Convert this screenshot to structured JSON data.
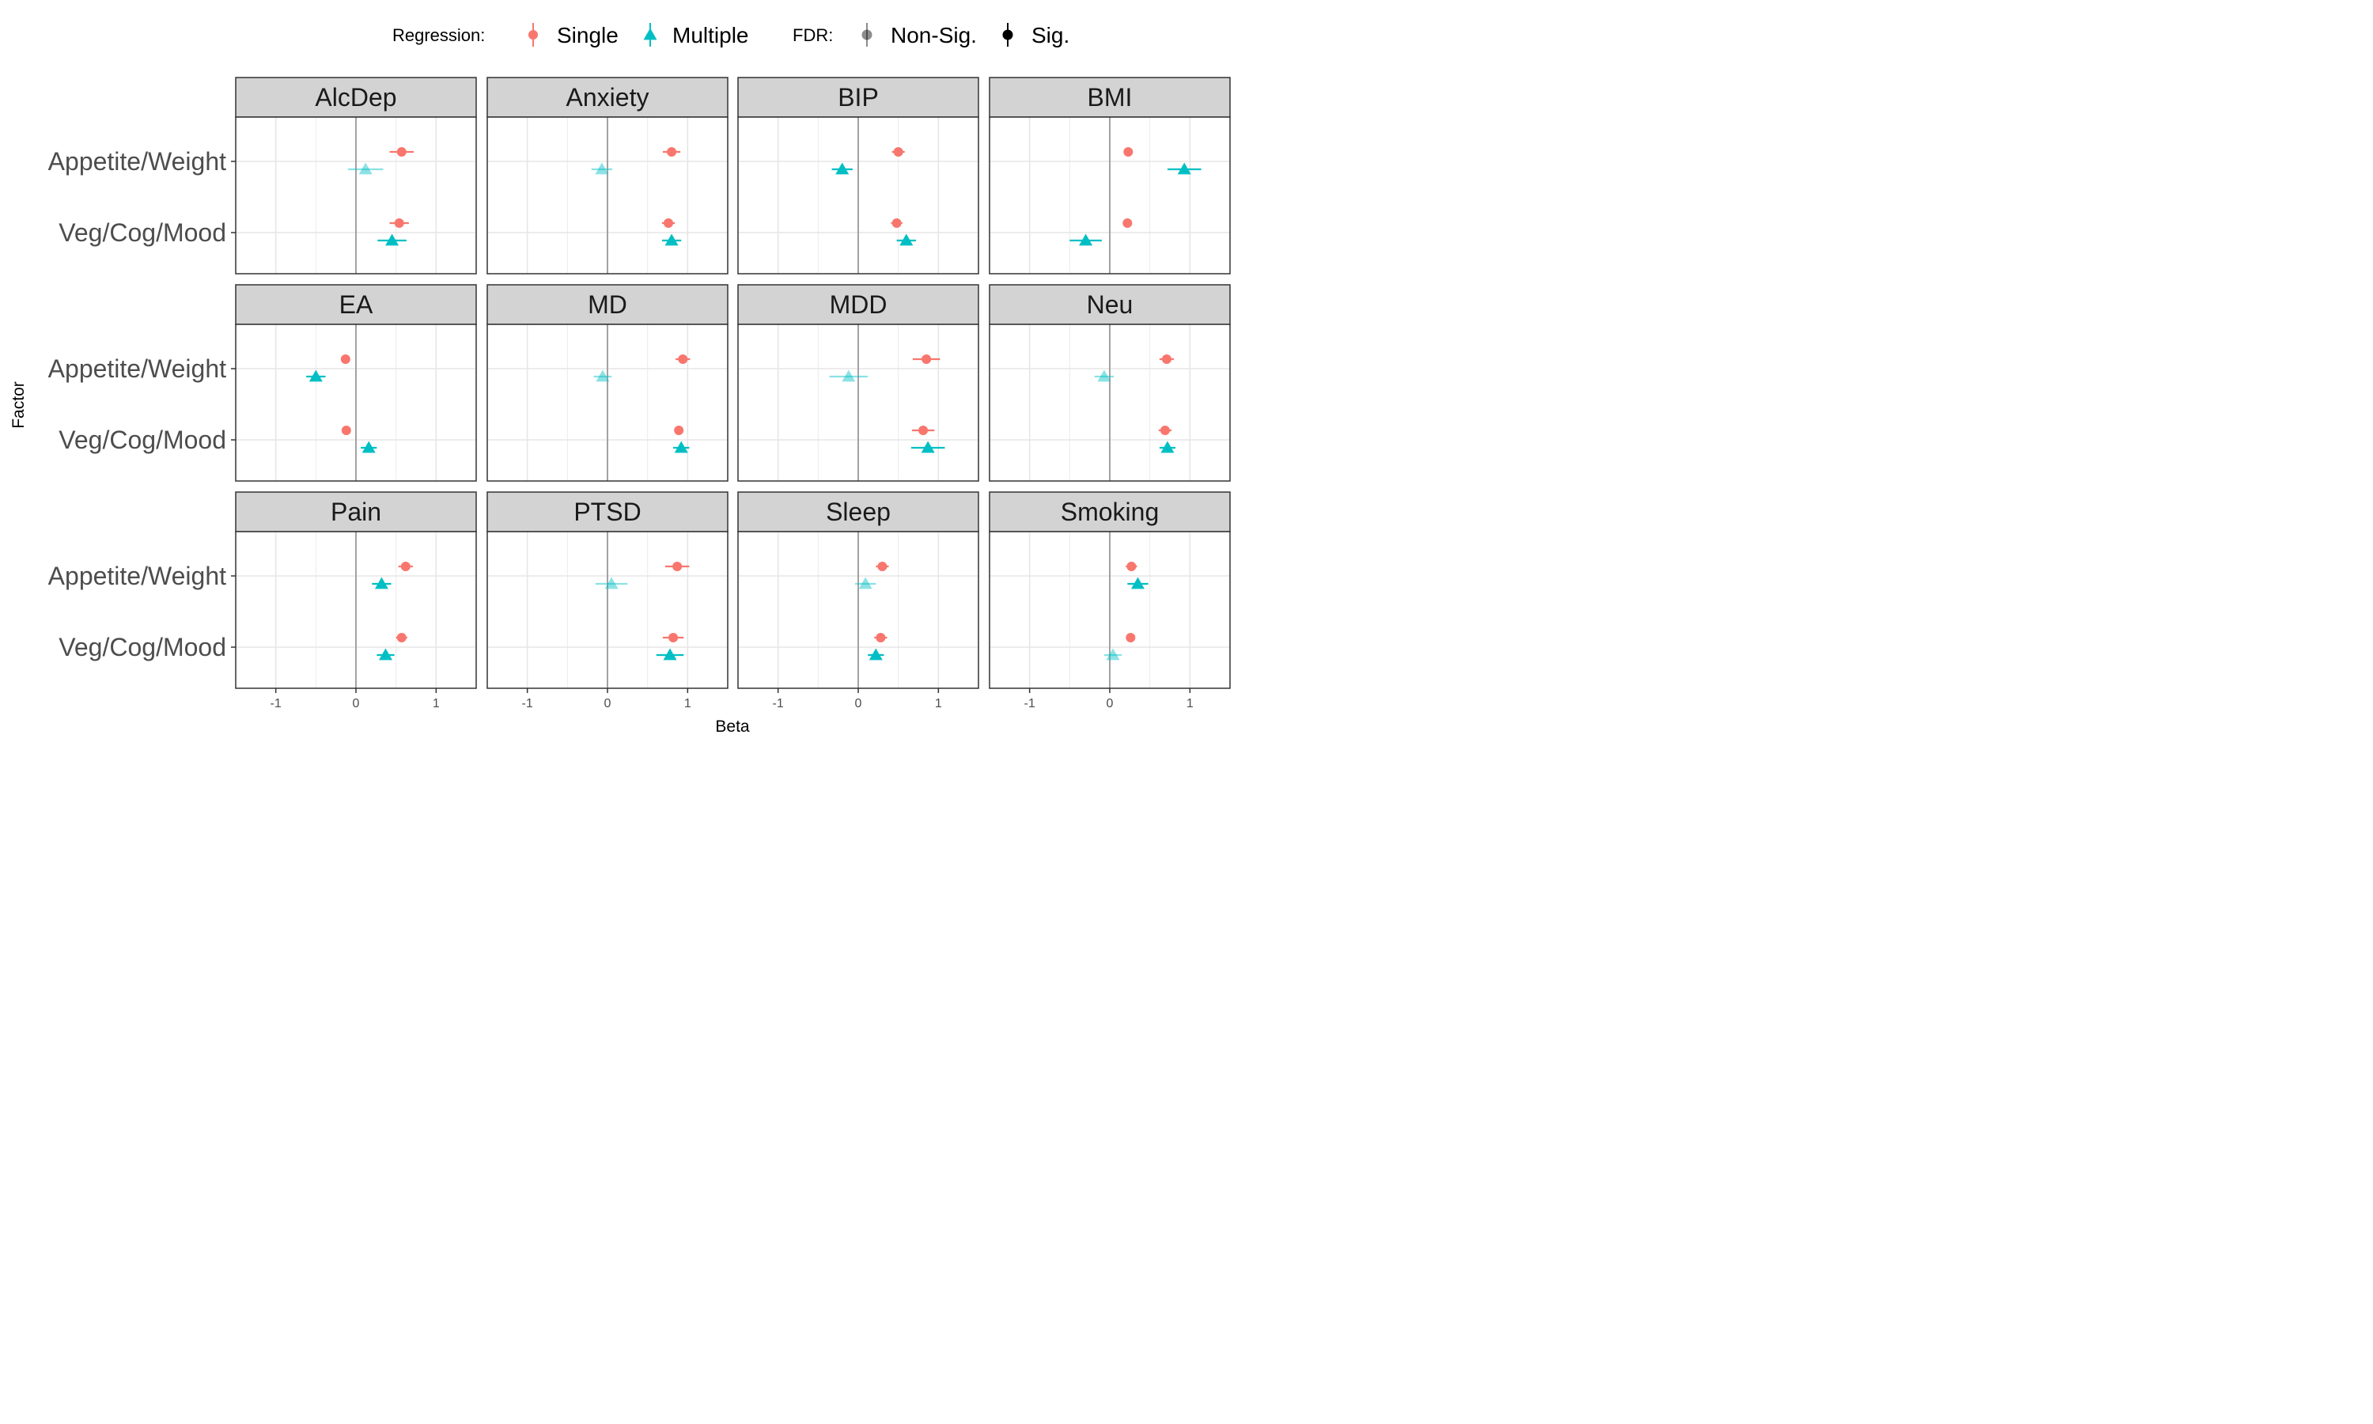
{
  "chart_data": {
    "type": "dot-whisker",
    "xlabel": "Beta",
    "ylabel": "Factor",
    "xlim": [
      -1.5,
      1.5
    ],
    "x_ticks": [
      "-1",
      "0",
      "1"
    ],
    "x_tick_values": [
      -1,
      0,
      1
    ],
    "y_categories": [
      "Appetite/Weight",
      "Veg/Cog/Mood"
    ],
    "grid": true,
    "legend": {
      "placement": "top",
      "regression_title": "Regression:",
      "regression_items": [
        {
          "label": "Single",
          "color": "#F8766D",
          "shape": "circle"
        },
        {
          "label": "Multiple",
          "color": "#00BFC4",
          "shape": "triangle"
        }
      ],
      "fdr_title": "FDR:",
      "fdr_items": [
        {
          "label": "Non-Sig.",
          "alpha": 0.45
        },
        {
          "label": "Sig.",
          "alpha": 1
        }
      ]
    },
    "series": [
      {
        "name": "Single",
        "color": "#F8766D",
        "shape": "circle"
      },
      {
        "name": "Multiple",
        "color": "#00BFC4",
        "shape": "triangle"
      }
    ],
    "panels": [
      {
        "title": "AlcDep",
        "points": [
          {
            "factor": "Appetite/Weight",
            "series": "Single",
            "beta": 0.57,
            "lo": 0.42,
            "hi": 0.72,
            "sig": true
          },
          {
            "factor": "Appetite/Weight",
            "series": "Multiple",
            "beta": 0.12,
            "lo": -0.1,
            "hi": 0.34,
            "sig": false
          },
          {
            "factor": "Veg/Cog/Mood",
            "series": "Single",
            "beta": 0.54,
            "lo": 0.42,
            "hi": 0.66,
            "sig": true
          },
          {
            "factor": "Veg/Cog/Mood",
            "series": "Multiple",
            "beta": 0.45,
            "lo": 0.27,
            "hi": 0.63,
            "sig": true
          }
        ]
      },
      {
        "title": "Anxiety",
        "points": [
          {
            "factor": "Appetite/Weight",
            "series": "Single",
            "beta": 0.8,
            "lo": 0.69,
            "hi": 0.91,
            "sig": true
          },
          {
            "factor": "Appetite/Weight",
            "series": "Multiple",
            "beta": -0.07,
            "lo": -0.2,
            "hi": 0.06,
            "sig": false
          },
          {
            "factor": "Veg/Cog/Mood",
            "series": "Single",
            "beta": 0.76,
            "lo": 0.68,
            "hi": 0.84,
            "sig": true
          },
          {
            "factor": "Veg/Cog/Mood",
            "series": "Multiple",
            "beta": 0.8,
            "lo": 0.68,
            "hi": 0.92,
            "sig": true
          }
        ]
      },
      {
        "title": "BIP",
        "points": [
          {
            "factor": "Appetite/Weight",
            "series": "Single",
            "beta": 0.5,
            "lo": 0.42,
            "hi": 0.58,
            "sig": true
          },
          {
            "factor": "Appetite/Weight",
            "series": "Multiple",
            "beta": -0.2,
            "lo": -0.33,
            "hi": -0.07,
            "sig": true
          },
          {
            "factor": "Veg/Cog/Mood",
            "series": "Single",
            "beta": 0.48,
            "lo": 0.41,
            "hi": 0.55,
            "sig": true
          },
          {
            "factor": "Veg/Cog/Mood",
            "series": "Multiple",
            "beta": 0.6,
            "lo": 0.48,
            "hi": 0.72,
            "sig": true
          }
        ]
      },
      {
        "title": "BMI",
        "points": [
          {
            "factor": "Appetite/Weight",
            "series": "Single",
            "beta": 0.23,
            "lo": 0.19,
            "hi": 0.27,
            "sig": true
          },
          {
            "factor": "Appetite/Weight",
            "series": "Multiple",
            "beta": 0.93,
            "lo": 0.72,
            "hi": 1.14,
            "sig": true
          },
          {
            "factor": "Veg/Cog/Mood",
            "series": "Single",
            "beta": 0.22,
            "lo": 0.18,
            "hi": 0.26,
            "sig": true
          },
          {
            "factor": "Veg/Cog/Mood",
            "series": "Multiple",
            "beta": -0.3,
            "lo": -0.5,
            "hi": -0.1,
            "sig": true
          }
        ]
      },
      {
        "title": "EA",
        "points": [
          {
            "factor": "Appetite/Weight",
            "series": "Single",
            "beta": -0.13,
            "lo": -0.17,
            "hi": -0.09,
            "sig": true
          },
          {
            "factor": "Appetite/Weight",
            "series": "Multiple",
            "beta": -0.5,
            "lo": -0.62,
            "hi": -0.38,
            "sig": true
          },
          {
            "factor": "Veg/Cog/Mood",
            "series": "Single",
            "beta": -0.12,
            "lo": -0.16,
            "hi": -0.08,
            "sig": true
          },
          {
            "factor": "Veg/Cog/Mood",
            "series": "Multiple",
            "beta": 0.16,
            "lo": 0.06,
            "hi": 0.26,
            "sig": true
          }
        ]
      },
      {
        "title": "MD",
        "points": [
          {
            "factor": "Appetite/Weight",
            "series": "Single",
            "beta": 0.94,
            "lo": 0.85,
            "hi": 1.03,
            "sig": true
          },
          {
            "factor": "Appetite/Weight",
            "series": "Multiple",
            "beta": -0.06,
            "lo": -0.17,
            "hi": 0.05,
            "sig": false
          },
          {
            "factor": "Veg/Cog/Mood",
            "series": "Single",
            "beta": 0.89,
            "lo": 0.84,
            "hi": 0.94,
            "sig": true
          },
          {
            "factor": "Veg/Cog/Mood",
            "series": "Multiple",
            "beta": 0.92,
            "lo": 0.82,
            "hi": 1.02,
            "sig": true
          }
        ]
      },
      {
        "title": "MDD",
        "points": [
          {
            "factor": "Appetite/Weight",
            "series": "Single",
            "beta": 0.85,
            "lo": 0.68,
            "hi": 1.02,
            "sig": true
          },
          {
            "factor": "Appetite/Weight",
            "series": "Multiple",
            "beta": -0.12,
            "lo": -0.36,
            "hi": 0.12,
            "sig": false
          },
          {
            "factor": "Veg/Cog/Mood",
            "series": "Single",
            "beta": 0.81,
            "lo": 0.67,
            "hi": 0.95,
            "sig": true
          },
          {
            "factor": "Veg/Cog/Mood",
            "series": "Multiple",
            "beta": 0.87,
            "lo": 0.66,
            "hi": 1.08,
            "sig": true
          }
        ]
      },
      {
        "title": "Neu",
        "points": [
          {
            "factor": "Appetite/Weight",
            "series": "Single",
            "beta": 0.71,
            "lo": 0.62,
            "hi": 0.8,
            "sig": true
          },
          {
            "factor": "Appetite/Weight",
            "series": "Multiple",
            "beta": -0.07,
            "lo": -0.19,
            "hi": 0.05,
            "sig": false
          },
          {
            "factor": "Veg/Cog/Mood",
            "series": "Single",
            "beta": 0.69,
            "lo": 0.61,
            "hi": 0.77,
            "sig": true
          },
          {
            "factor": "Veg/Cog/Mood",
            "series": "Multiple",
            "beta": 0.72,
            "lo": 0.62,
            "hi": 0.82,
            "sig": true
          }
        ]
      },
      {
        "title": "Pain",
        "points": [
          {
            "factor": "Appetite/Weight",
            "series": "Single",
            "beta": 0.62,
            "lo": 0.53,
            "hi": 0.71,
            "sig": true
          },
          {
            "factor": "Appetite/Weight",
            "series": "Multiple",
            "beta": 0.32,
            "lo": 0.2,
            "hi": 0.44,
            "sig": true
          },
          {
            "factor": "Veg/Cog/Mood",
            "series": "Single",
            "beta": 0.57,
            "lo": 0.5,
            "hi": 0.64,
            "sig": true
          },
          {
            "factor": "Veg/Cog/Mood",
            "series": "Multiple",
            "beta": 0.37,
            "lo": 0.26,
            "hi": 0.48,
            "sig": true
          }
        ]
      },
      {
        "title": "PTSD",
        "points": [
          {
            "factor": "Appetite/Weight",
            "series": "Single",
            "beta": 0.87,
            "lo": 0.72,
            "hi": 1.02,
            "sig": true
          },
          {
            "factor": "Appetite/Weight",
            "series": "Multiple",
            "beta": 0.05,
            "lo": -0.15,
            "hi": 0.25,
            "sig": false
          },
          {
            "factor": "Veg/Cog/Mood",
            "series": "Single",
            "beta": 0.82,
            "lo": 0.69,
            "hi": 0.95,
            "sig": true
          },
          {
            "factor": "Veg/Cog/Mood",
            "series": "Multiple",
            "beta": 0.78,
            "lo": 0.61,
            "hi": 0.95,
            "sig": true
          }
        ]
      },
      {
        "title": "Sleep",
        "points": [
          {
            "factor": "Appetite/Weight",
            "series": "Single",
            "beta": 0.3,
            "lo": 0.22,
            "hi": 0.38,
            "sig": true
          },
          {
            "factor": "Appetite/Weight",
            "series": "Multiple",
            "beta": 0.09,
            "lo": -0.04,
            "hi": 0.22,
            "sig": false
          },
          {
            "factor": "Veg/Cog/Mood",
            "series": "Single",
            "beta": 0.28,
            "lo": 0.2,
            "hi": 0.36,
            "sig": true
          },
          {
            "factor": "Veg/Cog/Mood",
            "series": "Multiple",
            "beta": 0.22,
            "lo": 0.12,
            "hi": 0.32,
            "sig": true
          }
        ]
      },
      {
        "title": "Smoking",
        "points": [
          {
            "factor": "Appetite/Weight",
            "series": "Single",
            "beta": 0.27,
            "lo": 0.2,
            "hi": 0.34,
            "sig": true
          },
          {
            "factor": "Appetite/Weight",
            "series": "Multiple",
            "beta": 0.35,
            "lo": 0.22,
            "hi": 0.48,
            "sig": true
          },
          {
            "factor": "Veg/Cog/Mood",
            "series": "Single",
            "beta": 0.26,
            "lo": 0.21,
            "hi": 0.31,
            "sig": true
          },
          {
            "factor": "Veg/Cog/Mood",
            "series": "Multiple",
            "beta": 0.04,
            "lo": -0.07,
            "hi": 0.15,
            "sig": false
          }
        ]
      }
    ]
  }
}
